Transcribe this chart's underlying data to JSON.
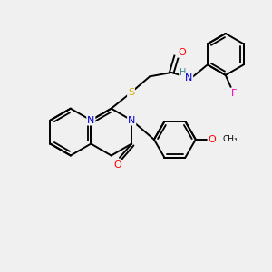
{
  "bg_color": "#f0f0f0",
  "bond_color": "#000000",
  "bond_width": 1.4,
  "atom_colors": {
    "N": "#0000cc",
    "O": "#ff0000",
    "S": "#ccaa00",
    "F": "#ee00aa",
    "H": "#338888",
    "C": "#000000"
  },
  "figsize": [
    3.0,
    3.0
  ],
  "dpi": 100,
  "xlim": [
    0,
    10
  ],
  "ylim": [
    0,
    10
  ]
}
